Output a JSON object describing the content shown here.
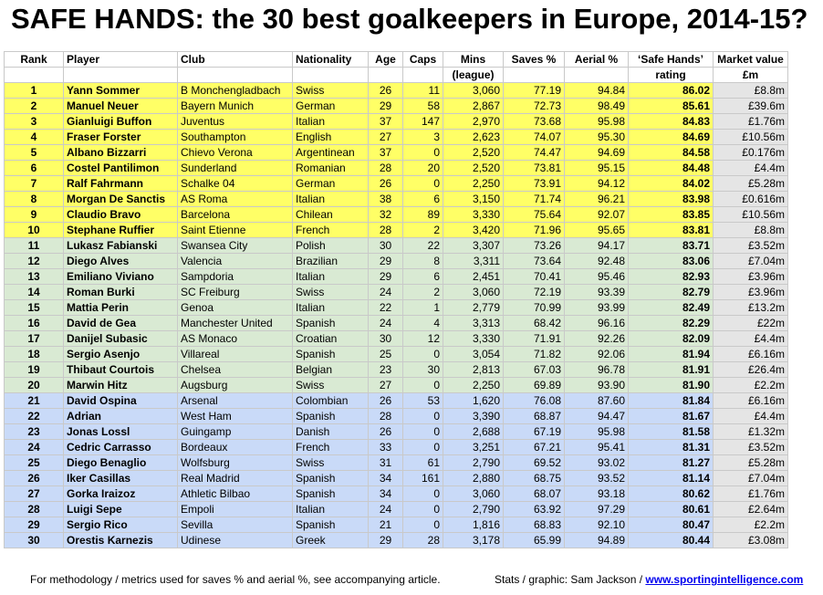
{
  "title": "SAFE HANDS: the 30 best goalkeepers in Europe, 2014-15?",
  "headers": {
    "rank": "Rank",
    "player": "Player",
    "club": "Club",
    "nationality": "Nationality",
    "age": "Age",
    "caps": "Caps",
    "mins": "Mins",
    "mins2": "(league)",
    "saves": "Saves %",
    "aerial": "Aerial %",
    "rating": "‘Safe Hands’",
    "rating2": "rating",
    "market": "Market value",
    "market2": "£m"
  },
  "colors": {
    "tier1": "#ffff66",
    "tier2": "#d9ead3",
    "tier3": "#c9daf8",
    "market_bg": "#e5e5e5"
  },
  "rows": [
    [
      "1",
      "Yann Sommer",
      "B Monchengladbach",
      "Swiss",
      "26",
      "11",
      "3,060",
      "77.19",
      "94.84",
      "86.02",
      "£8.8m"
    ],
    [
      "2",
      "Manuel Neuer",
      "Bayern Munich",
      "German",
      "29",
      "58",
      "2,867",
      "72.73",
      "98.49",
      "85.61",
      "£39.6m"
    ],
    [
      "3",
      "Gianluigi Buffon",
      "Juventus",
      "Italian",
      "37",
      "147",
      "2,970",
      "73.68",
      "95.98",
      "84.83",
      "£1.76m"
    ],
    [
      "4",
      "Fraser Forster",
      "Southampton",
      "English",
      "27",
      "3",
      "2,623",
      "74.07",
      "95.30",
      "84.69",
      "£10.56m"
    ],
    [
      "5",
      "Albano Bizzarri",
      "Chievo Verona",
      "Argentinean",
      "37",
      "0",
      "2,520",
      "74.47",
      "94.69",
      "84.58",
      "£0.176m"
    ],
    [
      "6",
      "Costel Pantilimon",
      "Sunderland",
      "Romanian",
      "28",
      "20",
      "2,520",
      "73.81",
      "95.15",
      "84.48",
      "£4.4m"
    ],
    [
      "7",
      "Ralf Fahrmann",
      "Schalke 04",
      "German",
      "26",
      "0",
      "2,250",
      "73.91",
      "94.12",
      "84.02",
      "£5.28m"
    ],
    [
      "8",
      "Morgan De Sanctis",
      "AS Roma",
      "Italian",
      "38",
      "6",
      "3,150",
      "71.74",
      "96.21",
      "83.98",
      "£0.616m"
    ],
    [
      "9",
      "Claudio Bravo",
      "Barcelona",
      "Chilean",
      "32",
      "89",
      "3,330",
      "75.64",
      "92.07",
      "83.85",
      "£10.56m"
    ],
    [
      "10",
      "Stephane Ruffier",
      "Saint Etienne",
      "French",
      "28",
      "2",
      "3,420",
      "71.96",
      "95.65",
      "83.81",
      "£8.8m"
    ],
    [
      "11",
      "Lukasz Fabianski",
      "Swansea City",
      "Polish",
      "30",
      "22",
      "3,307",
      "73.26",
      "94.17",
      "83.71",
      "£3.52m"
    ],
    [
      "12",
      "Diego Alves",
      "Valencia",
      "Brazilian",
      "29",
      "8",
      "3,311",
      "73.64",
      "92.48",
      "83.06",
      "£7.04m"
    ],
    [
      "13",
      "Emiliano Viviano",
      "Sampdoria",
      "Italian",
      "29",
      "6",
      "2,451",
      "70.41",
      "95.46",
      "82.93",
      "£3.96m"
    ],
    [
      "14",
      "Roman Burki",
      "SC Freiburg",
      "Swiss",
      "24",
      "2",
      "3,060",
      "72.19",
      "93.39",
      "82.79",
      "£3.96m"
    ],
    [
      "15",
      "Mattia Perin",
      "Genoa",
      "Italian",
      "22",
      "1",
      "2,779",
      "70.99",
      "93.99",
      "82.49",
      "£13.2m"
    ],
    [
      "16",
      "David de Gea",
      "Manchester United",
      "Spanish",
      "24",
      "4",
      "3,313",
      "68.42",
      "96.16",
      "82.29",
      "£22m"
    ],
    [
      "17",
      "Danijel Subasic",
      "AS Monaco",
      "Croatian",
      "30",
      "12",
      "3,330",
      "71.91",
      "92.26",
      "82.09",
      "£4.4m"
    ],
    [
      "18",
      "Sergio Asenjo",
      "Villareal",
      "Spanish",
      "25",
      "0",
      "3,054",
      "71.82",
      "92.06",
      "81.94",
      "£6.16m"
    ],
    [
      "19",
      "Thibaut Courtois",
      "Chelsea",
      "Belgian",
      "23",
      "30",
      "2,813",
      "67.03",
      "96.78",
      "81.91",
      "£26.4m"
    ],
    [
      "20",
      "Marwin Hitz",
      "Augsburg",
      "Swiss",
      "27",
      "0",
      "2,250",
      "69.89",
      "93.90",
      "81.90",
      "£2.2m"
    ],
    [
      "21",
      "David Ospina",
      "Arsenal",
      "Colombian",
      "26",
      "53",
      "1,620",
      "76.08",
      "87.60",
      "81.84",
      "£6.16m"
    ],
    [
      "22",
      "Adrian",
      "West Ham",
      "Spanish",
      "28",
      "0",
      "3,390",
      "68.87",
      "94.47",
      "81.67",
      "£4.4m"
    ],
    [
      "23",
      "Jonas Lossl",
      "Guingamp",
      "Danish",
      "26",
      "0",
      "2,688",
      "67.19",
      "95.98",
      "81.58",
      "£1.32m"
    ],
    [
      "24",
      "Cedric Carrasso",
      "Bordeaux",
      "French",
      "33",
      "0",
      "3,251",
      "67.21",
      "95.41",
      "81.31",
      "£3.52m"
    ],
    [
      "25",
      "Diego Benaglio",
      "Wolfsburg",
      "Swiss",
      "31",
      "61",
      "2,790",
      "69.52",
      "93.02",
      "81.27",
      "£5.28m"
    ],
    [
      "26",
      "Iker Casillas",
      "Real Madrid",
      "Spanish",
      "34",
      "161",
      "2,880",
      "68.75",
      "93.52",
      "81.14",
      "£7.04m"
    ],
    [
      "27",
      "Gorka Iraizoz",
      "Athletic Bilbao",
      "Spanish",
      "34",
      "0",
      "3,060",
      "68.07",
      "93.18",
      "80.62",
      "£1.76m"
    ],
    [
      "28",
      "Luigi Sepe",
      "Empoli",
      "Italian",
      "24",
      "0",
      "2,790",
      "63.92",
      "97.29",
      "80.61",
      "£2.64m"
    ],
    [
      "29",
      "Sergio Rico",
      "Sevilla",
      "Spanish",
      "21",
      "0",
      "1,816",
      "68.83",
      "92.10",
      "80.47",
      "£2.2m"
    ],
    [
      "30",
      "Orestis Karnezis",
      "Udinese",
      "Greek",
      "29",
      "28",
      "3,178",
      "65.99",
      "94.89",
      "80.44",
      "£3.08m"
    ]
  ],
  "footer": {
    "note": "For methodology / metrics used for saves % and aerial %, see accompanying article.",
    "credit": "Stats / graphic: Sam Jackson /",
    "link": "www.sportingintelligence.com"
  }
}
